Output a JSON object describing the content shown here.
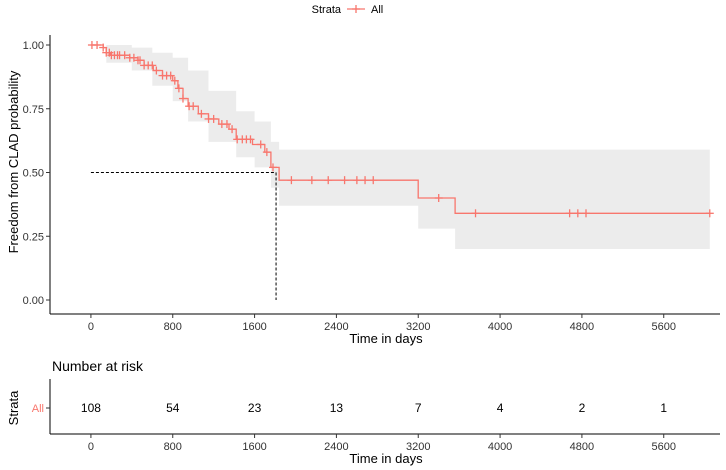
{
  "legend": {
    "title": "Strata",
    "entries": [
      {
        "label": "All",
        "color": "#F8766D"
      }
    ]
  },
  "chart_data": [
    {
      "type": "line",
      "subtype": "kaplan-meier-survival",
      "xlabel": "Time in days",
      "ylabel": "Freedom from CLAD probability",
      "xlim": [
        -400,
        6150
      ],
      "ylim": [
        0,
        1.0
      ],
      "xticks": [
        0,
        800,
        1600,
        2400,
        3200,
        4000,
        4800,
        5600
      ],
      "yticks": [
        0.0,
        0.25,
        0.5,
        0.75,
        1.0
      ],
      "ytick_labels": [
        "0.00",
        "0.25",
        "0.50",
        "0.75",
        "1.00"
      ],
      "grid": false,
      "legend_position": "top",
      "series": [
        {
          "name": "All",
          "color": "#F8766D",
          "step": [
            [
              0,
              1.0
            ],
            [
              120,
              0.99
            ],
            [
              150,
              0.97
            ],
            [
              190,
              0.96
            ],
            [
              380,
              0.95
            ],
            [
              460,
              0.94
            ],
            [
              520,
              0.92
            ],
            [
              610,
              0.9
            ],
            [
              700,
              0.88
            ],
            [
              800,
              0.86
            ],
            [
              850,
              0.83
            ],
            [
              900,
              0.79
            ],
            [
              950,
              0.76
            ],
            [
              1050,
              0.73
            ],
            [
              1150,
              0.71
            ],
            [
              1250,
              0.69
            ],
            [
              1350,
              0.67
            ],
            [
              1420,
              0.63
            ],
            [
              1580,
              0.61
            ],
            [
              1700,
              0.58
            ],
            [
              1760,
              0.52
            ],
            [
              1840,
              0.47
            ],
            [
              3200,
              0.4
            ],
            [
              3560,
              0.34
            ],
            [
              6050,
              0.34
            ]
          ],
          "ci_lower": [
            [
              0,
              1.0
            ],
            [
              150,
              0.93
            ],
            [
              400,
              0.9
            ],
            [
              600,
              0.84
            ],
            [
              800,
              0.78
            ],
            [
              950,
              0.7
            ],
            [
              1150,
              0.62
            ],
            [
              1420,
              0.56
            ],
            [
              1600,
              0.52
            ],
            [
              1760,
              0.44
            ],
            [
              1840,
              0.37
            ],
            [
              3200,
              0.28
            ],
            [
              3560,
              0.2
            ],
            [
              6050,
              0.2
            ]
          ],
          "ci_upper": [
            [
              0,
              1.0
            ],
            [
              150,
              1.0
            ],
            [
              400,
              0.99
            ],
            [
              600,
              0.97
            ],
            [
              800,
              0.95
            ],
            [
              950,
              0.9
            ],
            [
              1150,
              0.82
            ],
            [
              1420,
              0.74
            ],
            [
              1600,
              0.7
            ],
            [
              1760,
              0.62
            ],
            [
              1840,
              0.59
            ],
            [
              6050,
              0.59
            ]
          ],
          "censor_times": [
            10,
            60,
            120,
            150,
            180,
            200,
            230,
            260,
            280,
            330,
            380,
            420,
            460,
            480,
            520,
            560,
            600,
            640,
            700,
            740,
            780,
            820,
            860,
            900,
            960,
            1000,
            1080,
            1150,
            1200,
            1280,
            1330,
            1380,
            1430,
            1480,
            1520,
            1560,
            1660,
            1720,
            1780,
            1960,
            2160,
            2320,
            2480,
            2600,
            2680,
            2760,
            3400,
            3760,
            4680,
            4760,
            4840,
            6050
          ]
        }
      ],
      "median_reference": {
        "x": 1810,
        "y": 0.5
      }
    },
    {
      "type": "table",
      "title": "Number at risk",
      "xlabel": "Time in days",
      "ylabel": "Strata",
      "xticks": [
        0,
        800,
        1600,
        2400,
        3200,
        4000,
        4800,
        5600
      ],
      "rows": [
        {
          "name": "All",
          "color": "#F8766D",
          "values": [
            108,
            54,
            23,
            13,
            7,
            4,
            2,
            1
          ]
        }
      ]
    }
  ]
}
